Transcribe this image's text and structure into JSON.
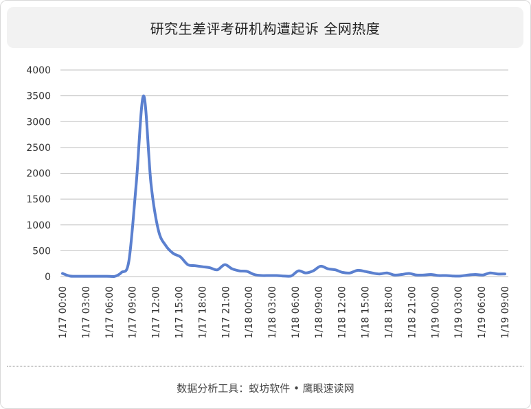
{
  "title": "研究生差评考研机构遭起诉 全网热度",
  "footer": "数据分析工具：蚁坊软件 • 鹰眼速读网",
  "colors": {
    "line": "#5b80cf",
    "grid": "#bfbfbf",
    "title_bg": "#f2f2f2"
  },
  "chart_data": {
    "type": "line",
    "title": "研究生差评考研机构遭起诉 全网热度",
    "xlabel": "",
    "ylabel": "",
    "ylim": [
      0,
      4000
    ],
    "yticks": [
      0,
      500,
      1000,
      1500,
      2000,
      2500,
      3000,
      3500,
      4000
    ],
    "grid": true,
    "x_tick_labels": [
      "1/17 00:00",
      "1/17 03:00",
      "1/17 06:00",
      "1/17 09:00",
      "1/17 12:00",
      "1/17 15:00",
      "1/17 18:00",
      "1/17 21:00",
      "1/18 00:00",
      "1/18 03:00",
      "1/18 06:00",
      "1/18 09:00",
      "1/18 12:00",
      "1/18 15:00",
      "1/18 18:00",
      "1/18 21:00",
      "1/19 00:00",
      "1/19 03:00",
      "1/19 06:00",
      "1/19 09:00"
    ],
    "series": [
      {
        "values": [
          60,
          10,
          5,
          5,
          5,
          5,
          5,
          0,
          80,
          300,
          1800,
          3500,
          1800,
          900,
          600,
          450,
          380,
          230,
          210,
          190,
          170,
          130,
          230,
          150,
          110,
          100,
          40,
          20,
          20,
          20,
          10,
          10,
          110,
          70,
          110,
          200,
          150,
          130,
          80,
          70,
          120,
          100,
          70,
          50,
          70,
          30,
          40,
          60,
          30,
          30,
          40,
          20,
          20,
          10,
          10,
          30,
          40,
          30,
          70,
          50,
          50
        ]
      }
    ]
  }
}
